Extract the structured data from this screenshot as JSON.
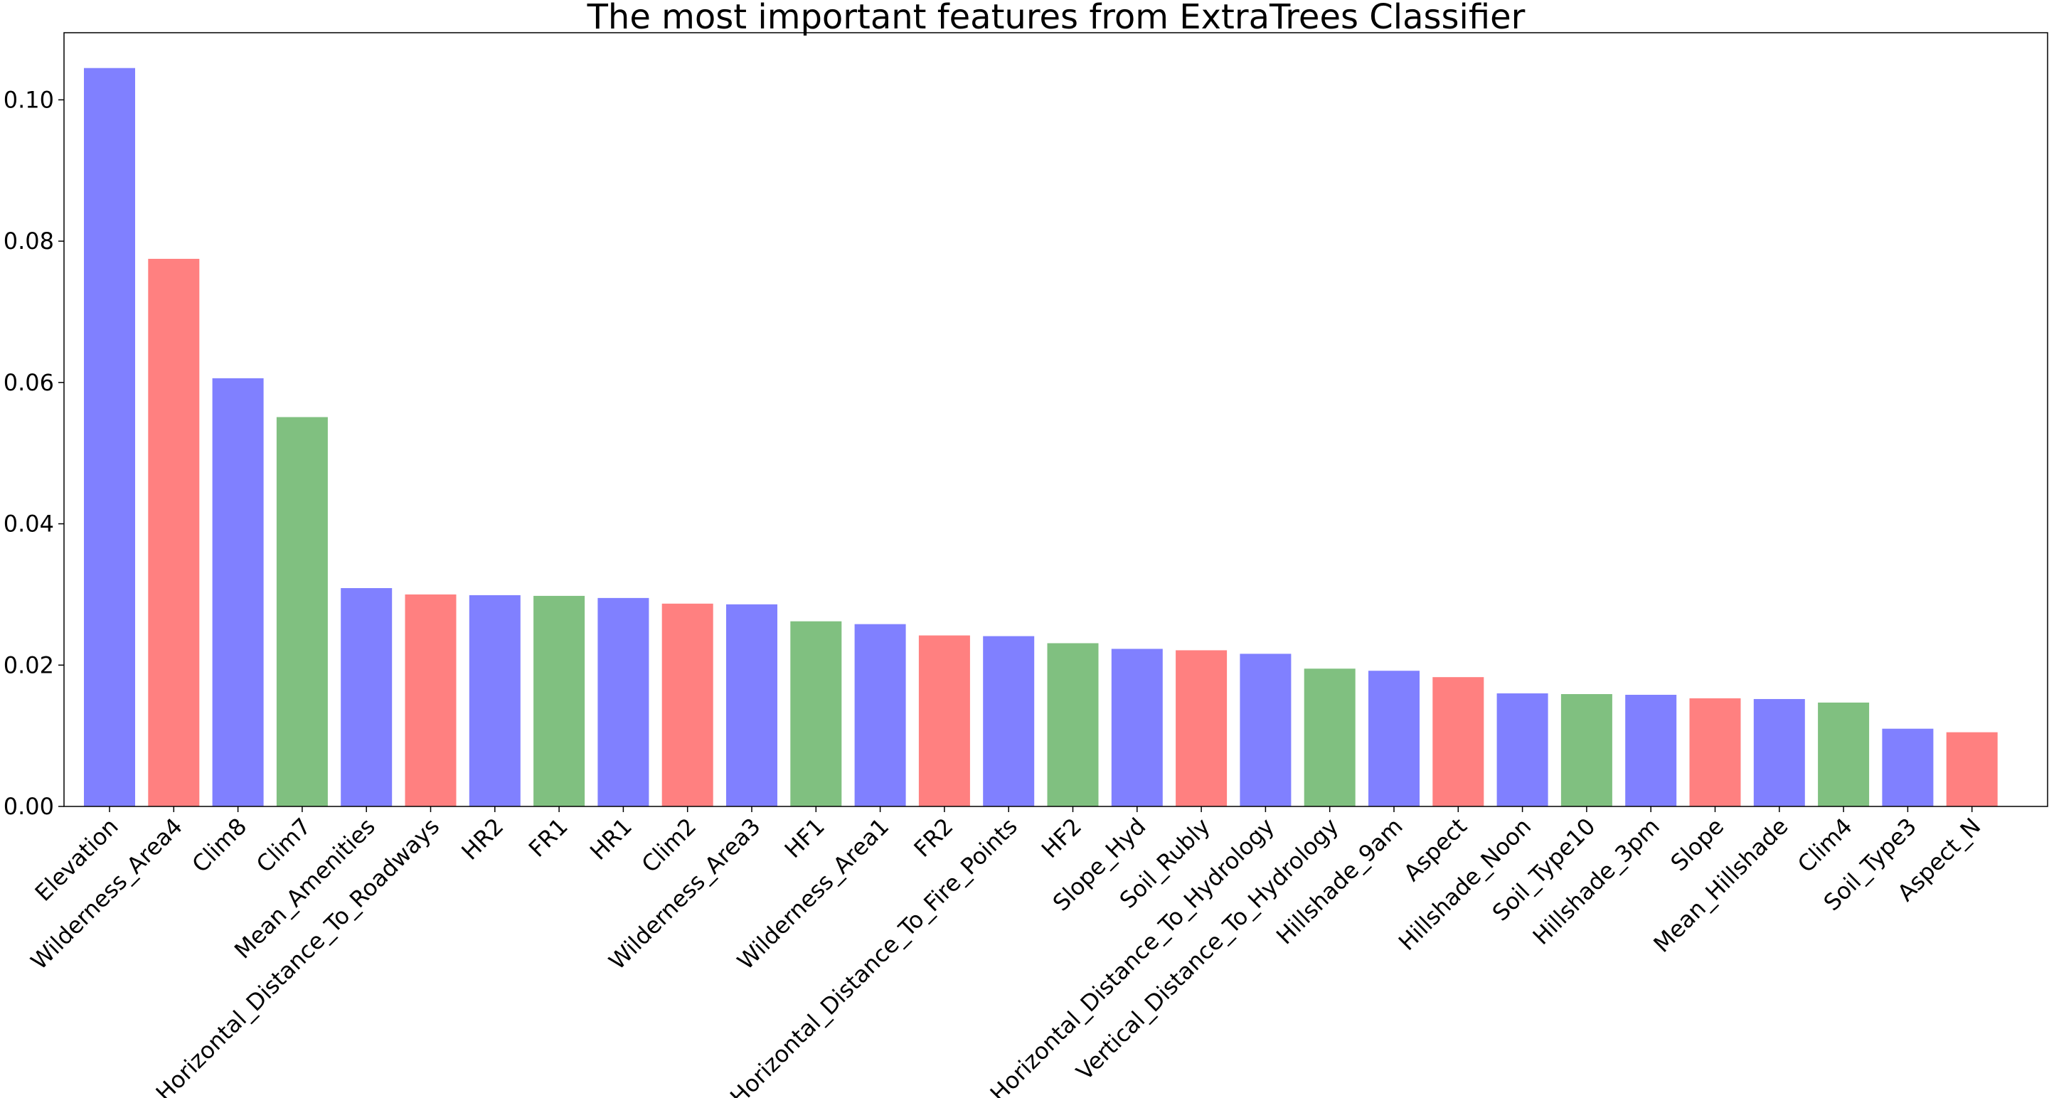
{
  "chart_data": {
    "type": "bar",
    "title": "The most important features from ExtraTrees Classifier",
    "xlabel": "",
    "ylabel": "",
    "ylim": [
      0,
      0.1095
    ],
    "yticks": [
      0.0,
      0.02,
      0.04,
      0.06,
      0.08,
      0.1
    ],
    "ytick_labels": [
      "0.00",
      "0.02",
      "0.04",
      "0.06",
      "0.08",
      "0.10"
    ],
    "grid": false,
    "legend": "none",
    "colors": {
      "blue": "#8080ff",
      "red": "#ff8080",
      "green": "#80c080"
    },
    "categories": [
      "Elevation",
      "Wilderness_Area4",
      "Clim8",
      "Clim7",
      "Mean_Amenities",
      "Horizontal_Distance_To_Roadways",
      "HR2",
      "FR1",
      "HR1",
      "Clim2",
      "Wilderness_Area3",
      "HF1",
      "Wilderness_Area1",
      "FR2",
      "Horizontal_Distance_To_Fire_Points",
      "HF2",
      "Slope_Hyd",
      "Soil_Rubly",
      "Horizontal_Distance_To_Hydrology",
      "Vertical_Distance_To_Hydrology",
      "Hillshade_9am",
      "Aspect",
      "Hillshade_Noon",
      "Soil_Type10",
      "Hillshade_3pm",
      "Slope",
      "Mean_Hillshade",
      "Clim4",
      "Soil_Type3",
      "Aspect_N"
    ],
    "values": [
      0.1045,
      0.0775,
      0.0606,
      0.0551,
      0.0309,
      0.03,
      0.0299,
      0.0298,
      0.0295,
      0.0287,
      0.0286,
      0.0262,
      0.0258,
      0.0242,
      0.0241,
      0.0231,
      0.0223,
      0.0221,
      0.0216,
      0.0195,
      0.0192,
      0.0183,
      0.016,
      0.0159,
      0.0158,
      0.0153,
      0.0152,
      0.0147,
      0.011,
      0.0105
    ],
    "bar_colors": [
      "#8080ff",
      "#ff8080",
      "#8080ff",
      "#80c080",
      "#8080ff",
      "#ff8080",
      "#8080ff",
      "#80c080",
      "#8080ff",
      "#ff8080",
      "#8080ff",
      "#80c080",
      "#8080ff",
      "#ff8080",
      "#8080ff",
      "#80c080",
      "#8080ff",
      "#ff8080",
      "#8080ff",
      "#80c080",
      "#8080ff",
      "#ff8080",
      "#8080ff",
      "#80c080",
      "#8080ff",
      "#ff8080",
      "#8080ff",
      "#80c080",
      "#8080ff",
      "#ff8080"
    ]
  }
}
